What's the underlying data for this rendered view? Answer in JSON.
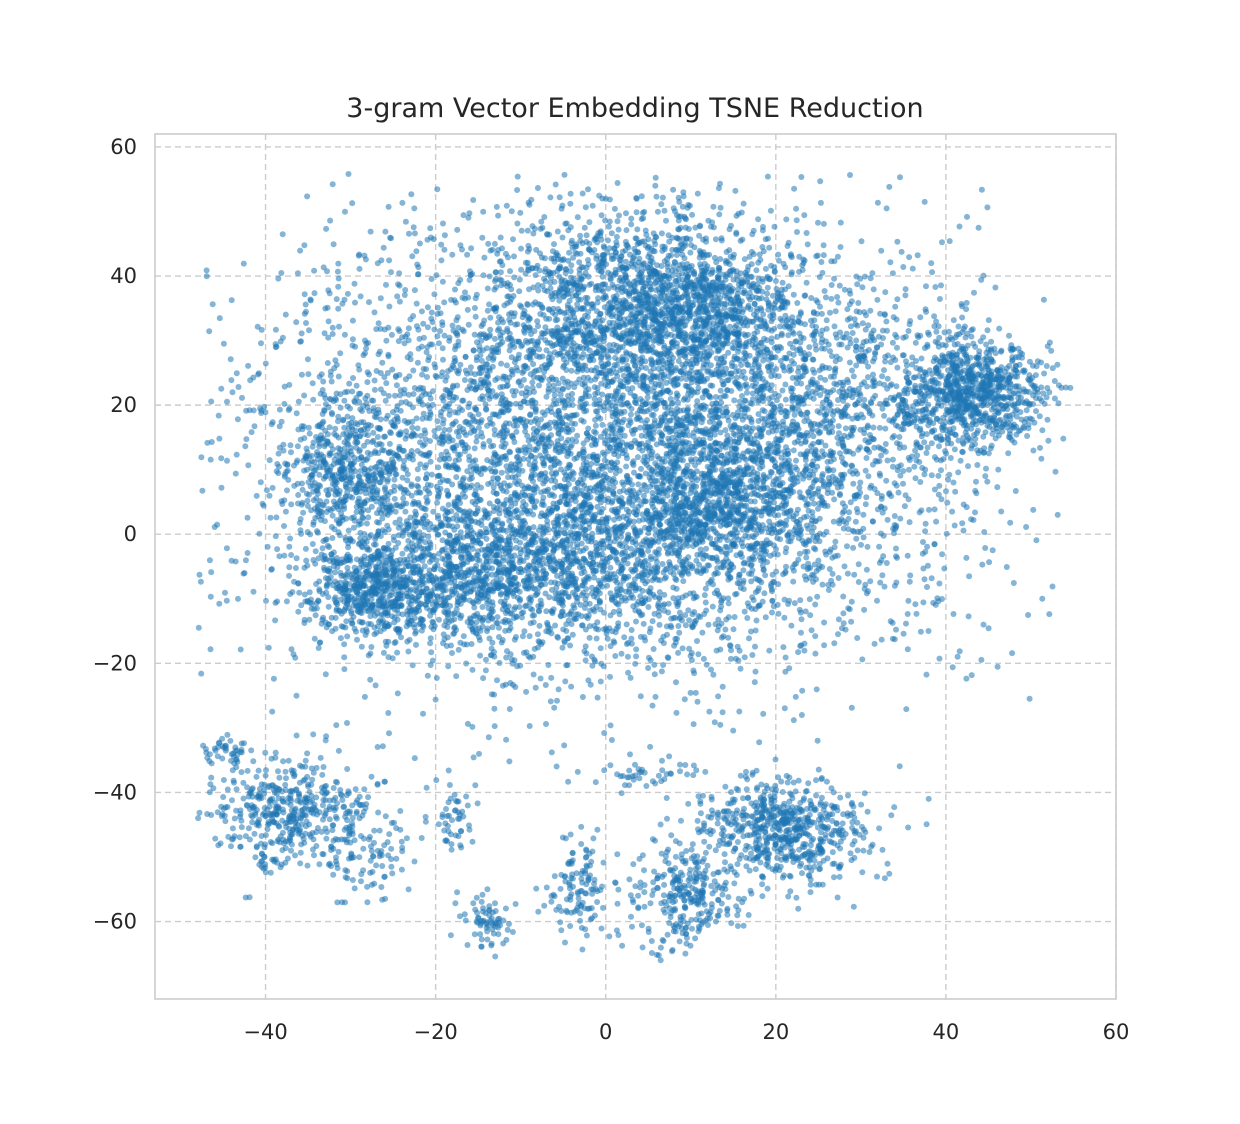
{
  "chart_data": {
    "type": "scatter",
    "title": "3-gram Vector Embedding TSNE Reduction",
    "xlabel": "",
    "ylabel": "",
    "xlim": [
      -53,
      60
    ],
    "ylim": [
      -72,
      62
    ],
    "xticks": [
      -40,
      -20,
      0,
      20,
      40,
      60
    ],
    "yticks": [
      -60,
      -40,
      -20,
      0,
      20,
      40,
      60
    ],
    "xtick_labels": [
      "−40",
      "−20",
      "0",
      "20",
      "40",
      "60"
    ],
    "ytick_labels": [
      "−60",
      "−40",
      "−20",
      "0",
      "20",
      "40",
      "60"
    ],
    "grid": true,
    "grid_style": "dashed",
    "point_color": "#1f77b4",
    "point_alpha": 0.55,
    "approx_point_count": 14000,
    "seed": 20240601,
    "clusters": [
      {
        "cx": 0.5,
        "cy": 14,
        "sx": 20,
        "sy": 17,
        "n": 5200
      },
      {
        "cx": 2,
        "cy": 36,
        "sx": 8,
        "sy": 7,
        "n": 900
      },
      {
        "cx": 11,
        "cy": 35,
        "sx": 5,
        "sy": 5,
        "n": 600
      },
      {
        "cx": 13,
        "cy": 5,
        "sx": 5,
        "sy": 6,
        "n": 600
      },
      {
        "cx": -20,
        "cy": -7,
        "sx": 8,
        "sy": 5,
        "n": 900
      },
      {
        "cx": -28,
        "cy": -9,
        "sx": 3,
        "sy": 3,
        "n": 250
      },
      {
        "cx": -30,
        "cy": 10,
        "sx": 4,
        "sy": 5,
        "n": 400
      },
      {
        "cx": -3,
        "cy": -3,
        "sx": 10,
        "sy": 8,
        "n": 900
      },
      {
        "cx": 25,
        "cy": 18,
        "sx": 8,
        "sy": 12,
        "n": 700
      },
      {
        "cx": 43,
        "cy": 22,
        "sx": 4,
        "sy": 4,
        "n": 800
      },
      {
        "cx": -37,
        "cy": -43,
        "sx": 4.5,
        "sy": 4.5,
        "n": 450
      },
      {
        "cx": -28,
        "cy": -50,
        "sx": 2.5,
        "sy": 3.5,
        "n": 90
      },
      {
        "cx": -18,
        "cy": -44,
        "sx": 1.5,
        "sy": 3,
        "n": 50
      },
      {
        "cx": -14,
        "cy": -60,
        "sx": 1.5,
        "sy": 2,
        "n": 70
      },
      {
        "cx": -3,
        "cy": -54,
        "sx": 2,
        "sy": 4,
        "n": 120
      },
      {
        "cx": 9,
        "cy": -56,
        "sx": 3,
        "sy": 4,
        "n": 260
      },
      {
        "cx": 21,
        "cy": -46,
        "sx": 5,
        "sy": 4,
        "n": 650
      },
      {
        "cx": 5,
        "cy": -37,
        "sx": 3,
        "sy": 1,
        "n": 40
      },
      {
        "cx": -45,
        "cy": -34,
        "sx": 1.5,
        "sy": 1.5,
        "n": 40
      }
    ]
  }
}
